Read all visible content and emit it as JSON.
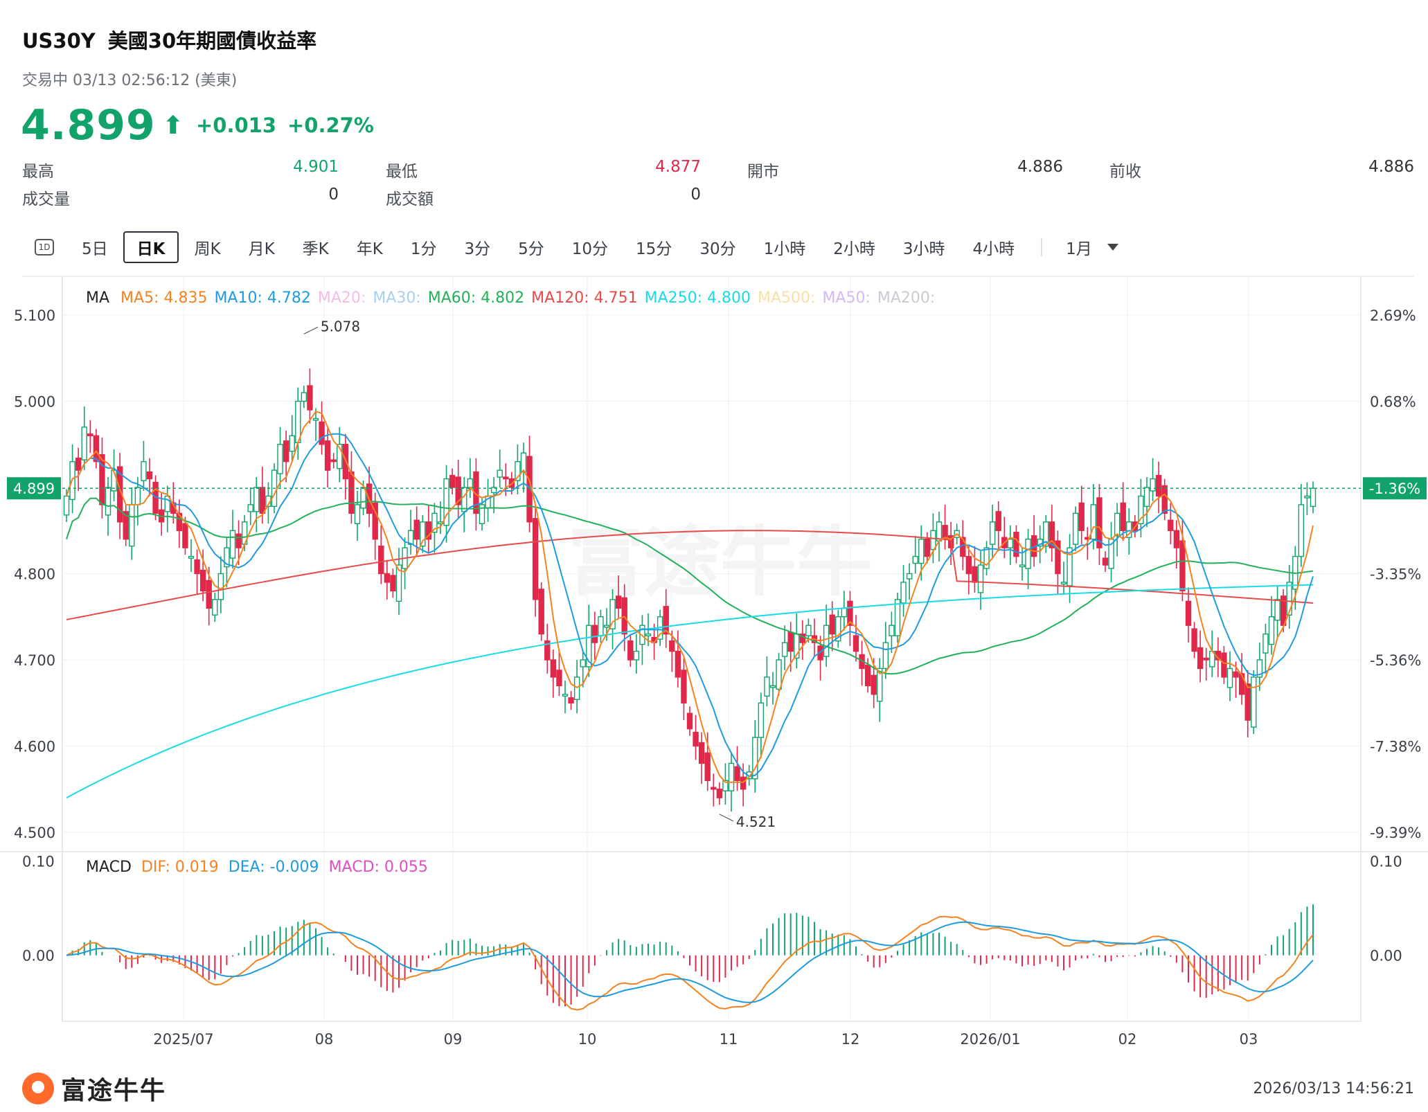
{
  "header": {
    "symbol": "US30Y",
    "name": "美國30年期國債收益率",
    "status": "交易中 03/13 02:56:12 (美東)",
    "price": "4.899",
    "change": "+0.013",
    "change_pct": "+0.27%",
    "up_color": "#11a36a",
    "down_color": "#e0294a"
  },
  "stats": {
    "high_label": "最高",
    "high_value": "4.901",
    "low_label": "最低",
    "low_value": "4.877",
    "open_label": "開市",
    "open_value": "4.886",
    "prev_label": "前收",
    "prev_value": "4.886",
    "volume_label": "成交量",
    "volume_value": "0",
    "turnover_label": "成交額",
    "turnover_value": "0"
  },
  "periods": {
    "icon": "1D",
    "items": [
      "5日",
      "日K",
      "周K",
      "月K",
      "季K",
      "年K",
      "1分",
      "3分",
      "5分",
      "10分",
      "15分",
      "30分",
      "1小時",
      "2小時",
      "3小時",
      "4小時"
    ],
    "active": "日K",
    "range": "1月"
  },
  "ma_legend": {
    "label": "MA",
    "items": [
      {
        "text": "MA5: 4.835",
        "color": "#f58220"
      },
      {
        "text": "MA10: 4.782",
        "color": "#1e9be0"
      },
      {
        "text": "MA20:",
        "color": "#f4bde6"
      },
      {
        "text": "MA30:",
        "color": "#a6d2f0"
      },
      {
        "text": "MA60: 4.802",
        "color": "#22b05a"
      },
      {
        "text": "MA120: 4.751",
        "color": "#e84a4a"
      },
      {
        "text": "MA250: 4.800",
        "color": "#19dbe6"
      },
      {
        "text": "MA500:",
        "color": "#f8dfa6"
      },
      {
        "text": "MA50:",
        "color": "#d8b8f0"
      },
      {
        "text": "MA200:",
        "color": "#c8ccd2"
      }
    ]
  },
  "macd_legend": {
    "label": "MACD",
    "items": [
      {
        "text": "DIF: 0.019",
        "color": "#f58220"
      },
      {
        "text": "DEA: -0.009",
        "color": "#1e9be0"
      },
      {
        "text": "MACD: 0.055",
        "color": "#e04ec0"
      }
    ]
  },
  "price_axis": [
    "5.100",
    "5.000",
    "4.900",
    "4.800",
    "4.700",
    "4.600",
    "4.500"
  ],
  "pct_axis": [
    "2.69%",
    "0.68%",
    "-1.36%",
    "-3.35%",
    "-5.36%",
    "-7.38%",
    "-9.39%"
  ],
  "macd_axis": [
    "0.10",
    "0.00"
  ],
  "macd_axis_right": [
    "0.10",
    "0.00"
  ],
  "current_price_tag": "4.899",
  "current_pct_tag": "-1.36%",
  "annotations": {
    "high": "5.078",
    "low": "4.521"
  },
  "x_labels": [
    "2025/07",
    "08",
    "09",
    "10",
    "11",
    "12",
    "2026/01",
    "02",
    "03"
  ],
  "footer": {
    "brand": "富途牛牛",
    "timestamp": "2026/03/13 14:56:21"
  },
  "chart_data": {
    "type": "candlestick",
    "series_ma": [
      "MA5",
      "MA10",
      "MA60",
      "MA120",
      "MA250"
    ],
    "closes": [
      4.89,
      4.93,
      4.92,
      4.97,
      4.96,
      4.93,
      4.88,
      4.9,
      4.92,
      4.86,
      4.84,
      4.88,
      4.9,
      4.93,
      4.91,
      4.87,
      4.86,
      4.89,
      4.87,
      4.85,
      4.83,
      4.82,
      4.8,
      4.78,
      4.76,
      4.77,
      4.8,
      4.83,
      4.85,
      4.83,
      4.86,
      4.88,
      4.9,
      4.87,
      4.89,
      4.92,
      4.95,
      4.93,
      4.96,
      5.0,
      5.01,
      4.99,
      4.98,
      4.95,
      4.92,
      4.93,
      4.95,
      4.91,
      4.87,
      4.88,
      4.9,
      4.87,
      4.84,
      4.8,
      4.79,
      4.78,
      4.81,
      4.83,
      4.85,
      4.84,
      4.86,
      4.84,
      4.87,
      4.86,
      4.91,
      4.9,
      4.88,
      4.9,
      4.91,
      4.87,
      4.88,
      4.89,
      4.9,
      4.92,
      4.91,
      4.9,
      4.93,
      4.94,
      4.86,
      4.77,
      4.73,
      4.7,
      4.68,
      4.67,
      4.66,
      4.65,
      4.68,
      4.7,
      4.74,
      4.72,
      4.75,
      4.74,
      4.77,
      4.76,
      4.73,
      4.7,
      4.71,
      4.74,
      4.73,
      4.72,
      4.75,
      4.73,
      4.71,
      4.68,
      4.65,
      4.62,
      4.6,
      4.58,
      4.56,
      4.55,
      4.54,
      4.56,
      4.58,
      4.56,
      4.55,
      4.57,
      4.61,
      4.65,
      4.68,
      4.67,
      4.7,
      4.72,
      4.71,
      4.73,
      4.72,
      4.74,
      4.72,
      4.7,
      4.74,
      4.73,
      4.75,
      4.76,
      4.74,
      4.71,
      4.69,
      4.67,
      4.66,
      4.69,
      4.72,
      4.74,
      4.77,
      4.79,
      4.8,
      4.82,
      4.84,
      4.82,
      4.85,
      4.86,
      4.84,
      4.83,
      4.85,
      4.82,
      4.8,
      4.79,
      4.81,
      4.83,
      4.86,
      4.85,
      4.83,
      4.84,
      4.82,
      4.81,
      4.84,
      4.82,
      4.84,
      4.86,
      4.83,
      4.8,
      4.79,
      4.83,
      4.87,
      4.85,
      4.84,
      4.88,
      4.83,
      4.81,
      4.84,
      4.87,
      4.85,
      4.86,
      4.85,
      4.89,
      4.9,
      4.91,
      4.89,
      4.87,
      4.85,
      4.83,
      4.78,
      4.74,
      4.71,
      4.69,
      4.7,
      4.71,
      4.7,
      4.68,
      4.69,
      4.68,
      4.66,
      4.63,
      4.68,
      4.7,
      4.73,
      4.75,
      4.77,
      4.74,
      4.79,
      4.82,
      4.88,
      4.89,
      4.899
    ],
    "price_range": [
      4.5,
      5.1
    ],
    "macd_range": [
      -0.07,
      0.11
    ],
    "high": 5.078,
    "low": 4.521
  }
}
